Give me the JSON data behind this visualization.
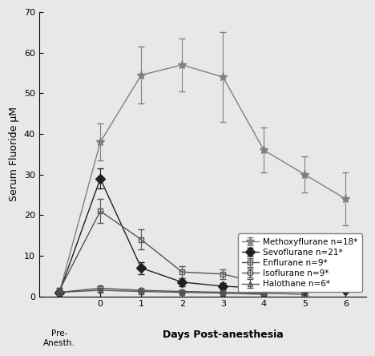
{
  "ylabel": "Serum Fluoride μM",
  "xlabel_main": "Days Post-anesthesia",
  "xlabel_pre": "Pre-\nAnesth.",
  "ylim": [
    0,
    70
  ],
  "yticks": [
    0,
    10,
    20,
    30,
    40,
    50,
    60,
    70
  ],
  "xticks": [
    -1,
    0,
    1,
    2,
    3,
    4,
    5,
    6
  ],
  "series": [
    {
      "name": "Methoxyflurane n=18*",
      "x": [
        -1,
        0,
        1,
        2,
        3,
        4,
        5,
        6
      ],
      "y": [
        1.0,
        38.0,
        54.5,
        57.0,
        54.0,
        36.0,
        30.0,
        24.0
      ],
      "yerr": [
        0.5,
        4.5,
        7.0,
        6.5,
        11.0,
        5.5,
        4.5,
        6.5
      ],
      "color": "#808080",
      "marker": "*",
      "markersize": 8,
      "fillstyle": "full"
    },
    {
      "name": "Sevoflurane n=21*",
      "x": [
        -1,
        0,
        1,
        2,
        3,
        4,
        5,
        6
      ],
      "y": [
        1.0,
        29.0,
        7.0,
        3.5,
        2.5,
        2.0,
        1.5,
        1.5
      ],
      "yerr": [
        0.5,
        2.5,
        1.5,
        1.0,
        0.8,
        0.5,
        0.5,
        0.0
      ],
      "color": "#202020",
      "marker": "D",
      "markersize": 6,
      "fillstyle": "full"
    },
    {
      "name": "Enflurane n=9*",
      "x": [
        -1,
        0,
        1,
        2,
        3,
        4,
        5
      ],
      "y": [
        1.5,
        21.0,
        14.0,
        6.0,
        5.5,
        3.0,
        2.0
      ],
      "yerr": [
        0.5,
        3.0,
        2.5,
        1.5,
        1.2,
        0.8,
        0.5
      ],
      "color": "#555555",
      "marker": "s",
      "markersize": 5,
      "fillstyle": "none"
    },
    {
      "name": "Isoflurane n=9*",
      "x": [
        -1,
        0,
        1,
        2,
        3,
        4,
        5
      ],
      "y": [
        1.0,
        2.0,
        1.5,
        1.2,
        1.0,
        0.8,
        0.5
      ],
      "yerr": [
        0.3,
        0.5,
        0.4,
        0.3,
        0.3,
        0.2,
        0.2
      ],
      "color": "#555555",
      "marker": "o",
      "markersize": 5,
      "fillstyle": "none"
    },
    {
      "name": "Halothane n=6*",
      "x": [
        -1,
        0,
        1,
        2,
        3,
        4
      ],
      "y": [
        1.0,
        1.5,
        1.2,
        1.0,
        0.8,
        0.5
      ],
      "yerr": [
        0.3,
        0.4,
        0.3,
        0.3,
        0.2,
        0.2
      ],
      "color": "#555555",
      "marker": "^",
      "markersize": 5,
      "fillstyle": "none"
    }
  ],
  "background_color": "#e8e8e8",
  "legend_fontsize": 7.5,
  "axis_fontsize": 9,
  "tick_fontsize": 8
}
